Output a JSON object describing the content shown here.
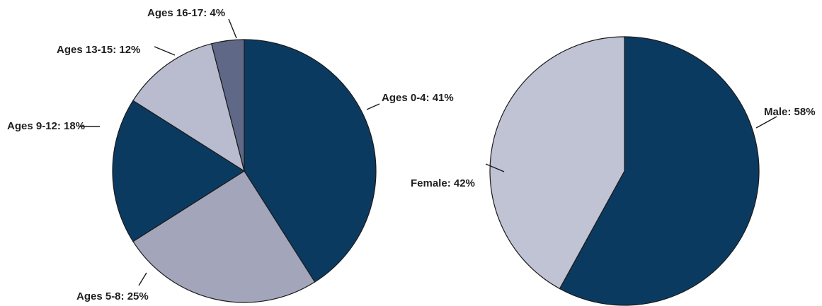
{
  "chart_data": [
    {
      "type": "pie",
      "title": "",
      "slices": [
        {
          "label": "Ages 0-4",
          "value": 41,
          "display": "Ages 0-4: 41%",
          "color": "#0b3a61"
        },
        {
          "label": "Ages 5-8",
          "value": 25,
          "display": "Ages 5-8: 25%",
          "color": "#a3a6bb"
        },
        {
          "label": "Ages 9-12",
          "value": 18,
          "display": "Ages 9-12: 18%",
          "color": "#0b3a61"
        },
        {
          "label": "Ages 13-15",
          "value": 12,
          "display": "Ages 13-15: 12%",
          "color": "#b9bccf"
        },
        {
          "label": "Ages 16-17",
          "value": 4,
          "display": "Ages 16-17: 4%",
          "color": "#5f6886"
        }
      ]
    },
    {
      "type": "pie",
      "title": "",
      "slices": [
        {
          "label": "Male",
          "value": 58,
          "display": "Male: 58%",
          "color": "#0b3a61"
        },
        {
          "label": "Female",
          "value": 42,
          "display": "Female: 42%",
          "color": "#c0c3d4"
        }
      ]
    }
  ]
}
